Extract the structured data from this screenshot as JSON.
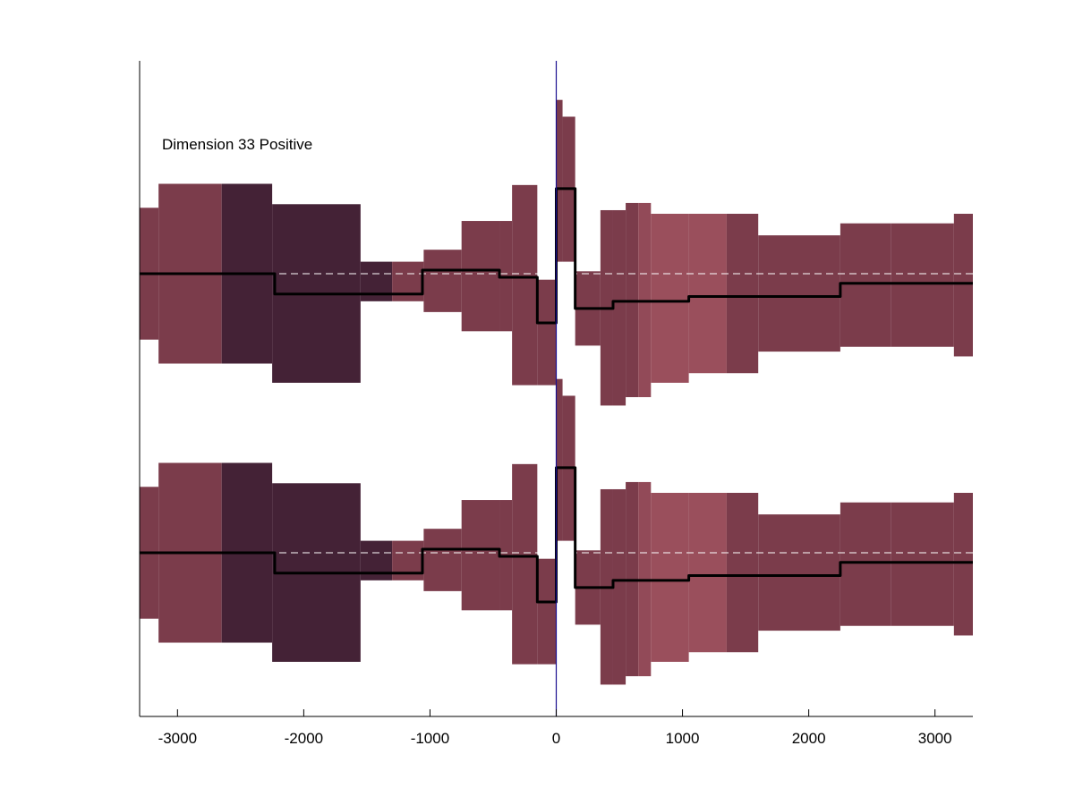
{
  "chart_data": {
    "type": "area",
    "annotation": "Dimension 33 Positive",
    "xlim": [
      -3300,
      3300
    ],
    "x_ticks": [
      -3000,
      -2000,
      -1000,
      0,
      1000,
      2000,
      3000
    ],
    "x_tick_labels": [
      "-3000",
      "-2000",
      "-1000",
      "0",
      "1000",
      "2000",
      "3000"
    ],
    "ylabel": "",
    "xlabel": "",
    "grid": false,
    "zero_line": true,
    "bins": [
      {
        "x0": -3300,
        "x1": -3150,
        "low": -0.55,
        "high": 0.55,
        "color": "#7b3c4b"
      },
      {
        "x0": -3150,
        "x1": -2650,
        "low": -0.75,
        "high": 0.75,
        "color": "#7b3c4b"
      },
      {
        "x0": -2650,
        "x1": -2250,
        "low": -0.75,
        "high": 0.75,
        "color": "#442236"
      },
      {
        "x0": -2250,
        "x1": -1550,
        "low": -0.91,
        "high": 0.58,
        "color": "#442236"
      },
      {
        "x0": -1550,
        "x1": -1300,
        "low": -0.23,
        "high": 0.1,
        "color": "#442236"
      },
      {
        "x0": -1300,
        "x1": -1050,
        "low": -0.23,
        "high": 0.1,
        "color": "#7b3c4b"
      },
      {
        "x0": -1050,
        "x1": -750,
        "low": -0.32,
        "high": 0.2,
        "color": "#7b3c4b"
      },
      {
        "x0": -750,
        "x1": -450,
        "low": -0.48,
        "high": 0.44,
        "color": "#7b3c4b"
      },
      {
        "x0": -450,
        "x1": -350,
        "low": -0.48,
        "high": 0.44,
        "color": "#7b3c4b"
      },
      {
        "x0": -350,
        "x1": -150,
        "low": -0.93,
        "high": 0.74,
        "color": "#7b3c4b"
      },
      {
        "x0": -150,
        "x1": 0,
        "low": -0.93,
        "high": -0.05,
        "color": "#7b3c4b"
      },
      {
        "x0": 0,
        "x1": 50,
        "low": 0.1,
        "high": 1.45,
        "color": "#7b3c4b"
      },
      {
        "x0": 50,
        "x1": 150,
        "low": 0.1,
        "high": 1.31,
        "color": "#7b3c4b"
      },
      {
        "x0": 150,
        "x1": 350,
        "low": -0.6,
        "high": 0.02,
        "color": "#7b3c4b"
      },
      {
        "x0": 350,
        "x1": 450,
        "low": -1.1,
        "high": 0.53,
        "color": "#7b3c4b"
      },
      {
        "x0": 450,
        "x1": 550,
        "low": -1.1,
        "high": 0.53,
        "color": "#7b3c4b"
      },
      {
        "x0": 550,
        "x1": 650,
        "low": -1.03,
        "high": 0.59,
        "color": "#7b3c4b"
      },
      {
        "x0": 650,
        "x1": 750,
        "low": -1.03,
        "high": 0.59,
        "color": "#924a58"
      },
      {
        "x0": 750,
        "x1": 1050,
        "low": -0.91,
        "high": 0.5,
        "color": "#9a4f5c"
      },
      {
        "x0": 1050,
        "x1": 1350,
        "low": -0.83,
        "high": 0.5,
        "color": "#9a4f5c"
      },
      {
        "x0": 1350,
        "x1": 1600,
        "low": -0.83,
        "high": 0.5,
        "color": "#7b3c4b"
      },
      {
        "x0": 1600,
        "x1": 2250,
        "low": -0.65,
        "high": 0.32,
        "color": "#7b3c4b"
      },
      {
        "x0": 2250,
        "x1": 2650,
        "low": -0.61,
        "high": 0.42,
        "color": "#7b3c4b"
      },
      {
        "x0": 2650,
        "x1": 3150,
        "low": -0.61,
        "high": 0.42,
        "color": "#7b3c4b"
      },
      {
        "x0": 3150,
        "x1": 3300,
        "low": -0.69,
        "high": 0.5,
        "color": "#7b3c4b"
      }
    ],
    "mean_steps": [
      {
        "x0": -3300,
        "x1": -2230,
        "y": 0.0
      },
      {
        "x0": -2230,
        "x1": -1060,
        "y": -0.17
      },
      {
        "x0": -1060,
        "x1": -450,
        "y": 0.03
      },
      {
        "x0": -450,
        "x1": -150,
        "y": -0.03
      },
      {
        "x0": -150,
        "x1": 0,
        "y": -0.41
      },
      {
        "x0": 0,
        "x1": 150,
        "y": 0.71
      },
      {
        "x0": 150,
        "x1": 450,
        "y": -0.29
      },
      {
        "x0": 450,
        "x1": 1050,
        "y": -0.23
      },
      {
        "x0": 1050,
        "x1": 2250,
        "y": -0.19
      },
      {
        "x0": 2250,
        "x1": 3300,
        "y": -0.08
      }
    ],
    "panels": 2,
    "colors": {
      "band_mid": "#7b3c4b",
      "band_dark": "#442236",
      "band_light": "#9a4f5c",
      "mean_line": "#000000",
      "zero_line": "#1a0f8f",
      "baseline_dash": "#ffffff"
    }
  }
}
